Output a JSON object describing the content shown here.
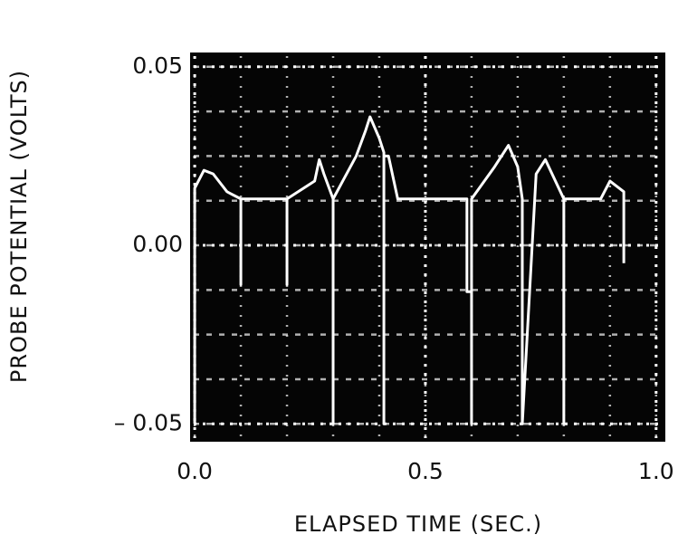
{
  "chart_data": {
    "type": "line",
    "x_label": "ELAPSED TIME (SEC.)",
    "y_label": "PROBE POTENTIAL (VOLTS)",
    "xlim": [
      -0.01,
      1.02
    ],
    "ylim": [
      -0.055,
      0.054
    ],
    "xticks": [
      {
        "value": 0,
        "label": "0.0"
      },
      0.5,
      {
        "value": 1,
        "label": "1.0"
      }
    ],
    "yticks": [
      0.05,
      {
        "value": 0,
        "label": "0.00"
      },
      {
        "value": -0.05,
        "label": "– 0.05"
      }
    ],
    "color": "#ffffff",
    "background": "#050505",
    "grid": true,
    "x": [
      0,
      0,
      0.02,
      0.04,
      0.07,
      0.1,
      0.1,
      0.1,
      0.2,
      0.2,
      0.2,
      0.26,
      0.27,
      0.28,
      0.3,
      0.3,
      0.3,
      0.35,
      0.37,
      0.38,
      0.4,
      0.41,
      0.41,
      0.41,
      0.42,
      0.44,
      0.59,
      0.59,
      0.6,
      0.6,
      0.6,
      0.65,
      0.68,
      0.7,
      0.71,
      0.71,
      0.74,
      0.76,
      0.8,
      0.8,
      0.8,
      0.88,
      0.9,
      0.93,
      0.93
    ],
    "values": [
      -0.05,
      0.016,
      0.021,
      0.02,
      0.015,
      0.013,
      -0.011,
      0.013,
      0.013,
      -0.011,
      0.013,
      0.018,
      0.024,
      0.02,
      0.013,
      -0.05,
      0.013,
      0.025,
      0.032,
      0.036,
      0.03,
      0.026,
      -0.05,
      0.025,
      0.025,
      0.013,
      0.013,
      -0.013,
      -0.013,
      -0.05,
      0.013,
      0.022,
      0.028,
      0.022,
      0.013,
      -0.05,
      0.02,
      0.024,
      0.013,
      -0.05,
      0.013,
      0.013,
      0.018,
      0.015,
      -0.005
    ]
  }
}
